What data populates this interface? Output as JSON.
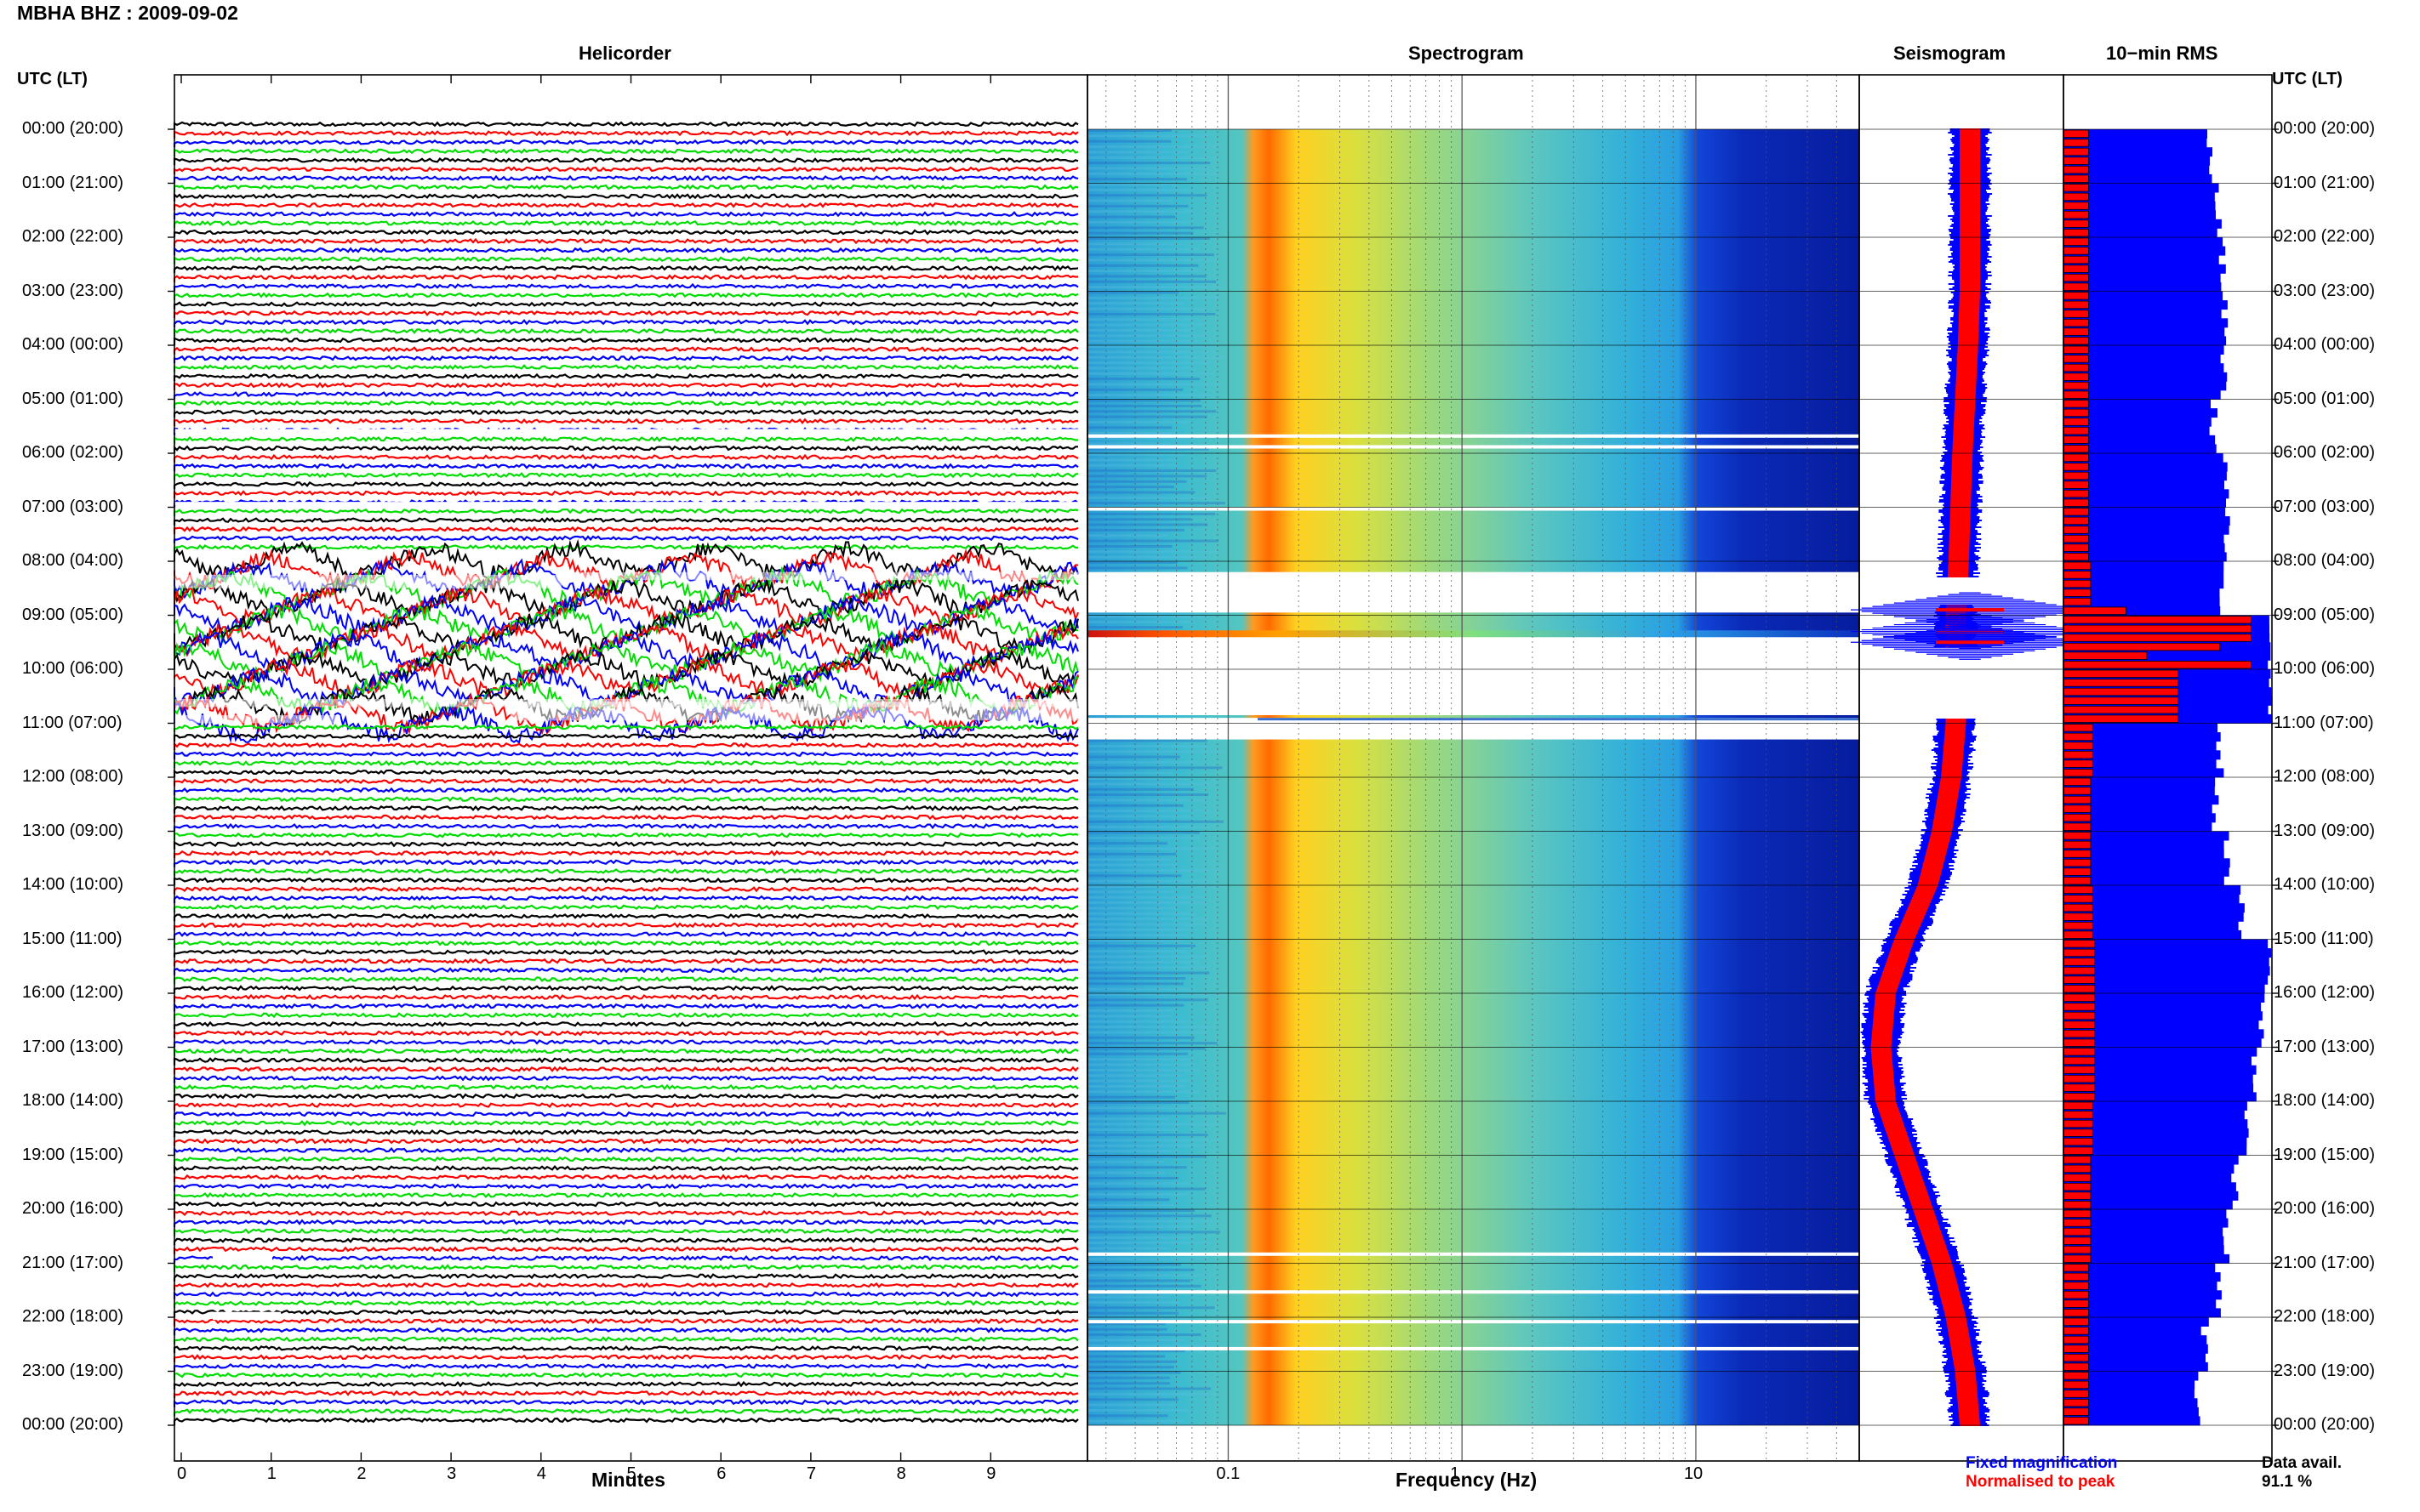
{
  "page": {
    "station_title": "MBHA BHZ : 2009-09-02",
    "utc_header_left": "UTC (LT)",
    "utc_header_right": "UTC (LT)"
  },
  "panels": {
    "helicorder": {
      "title": "Helicorder",
      "xlabel": "Minutes"
    },
    "spectrogram": {
      "title": "Spectrogram",
      "xlabel": "Frequency (Hz)"
    },
    "seismogram": {
      "title": "Seismogram"
    },
    "rms": {
      "title": "10−min RMS"
    }
  },
  "time_labels": [
    "00:00 (20:00)",
    "01:00 (21:00)",
    "02:00 (22:00)",
    "03:00 (23:00)",
    "04:00 (00:00)",
    "05:00 (01:00)",
    "06:00 (02:00)",
    "07:00 (03:00)",
    "08:00 (04:00)",
    "09:00 (05:00)",
    "10:00 (06:00)",
    "11:00 (07:00)",
    "12:00 (08:00)",
    "13:00 (09:00)",
    "14:00 (10:00)",
    "15:00 (11:00)",
    "16:00 (12:00)",
    "17:00 (13:00)",
    "18:00 (14:00)",
    "19:00 (15:00)",
    "20:00 (16:00)",
    "21:00 (17:00)",
    "22:00 (18:00)",
    "23:00 (19:00)",
    "00:00 (20:00)"
  ],
  "legend": {
    "fixed": "Fixed magnification",
    "normalised": "Normalised to peak",
    "data_avail_label": "Data avail.",
    "data_avail_value": "91.1 %"
  },
  "colors": {
    "trace_cycle": [
      "#000000",
      "#ff0000",
      "#0000ff",
      "#00dd00"
    ],
    "fixed": "#0000ff",
    "normalised": "#ff0000"
  },
  "chart_data": {
    "type": "heatmap",
    "helicorder": {
      "x_ticks": [
        "0",
        "1",
        "2",
        "3",
        "4",
        "5",
        "6",
        "7",
        "8",
        "9"
      ],
      "xlim": [
        0,
        10
      ],
      "lines_per_hour": 6,
      "hours": 24,
      "disturbed_hours": [
        8,
        9,
        10
      ]
    },
    "spectrogram": {
      "x_scale": "log",
      "xlim": [
        0.025,
        50
      ],
      "x_ticks": [
        "0.1",
        "1",
        "10"
      ],
      "tick_values": [
        0.1,
        1,
        10
      ],
      "gaps_hours": [
        [
          8.2,
          8.95
        ],
        [
          9.3,
          10.85
        ],
        [
          10.9,
          11.3
        ]
      ]
    },
    "seismogram": {
      "offset_by_hour": [
        0,
        0,
        0,
        0,
        0.02,
        0.05,
        0.08,
        0.1,
        0.12,
        0.15,
        0.15,
        0.15,
        0.2,
        0.3,
        0.45,
        0.7,
        0.9,
        0.95,
        0.9,
        0.7,
        0.5,
        0.3,
        0.15,
        0.05,
        0
      ],
      "gap_hours": [
        [
          8.3,
          8.8
        ],
        [
          9.6,
          10.9
        ]
      ]
    },
    "rms": {
      "blue_by_hour": [
        0.7,
        0.74,
        0.76,
        0.77,
        0.77,
        0.72,
        0.78,
        0.78,
        0.75,
        1.0,
        1.0,
        0.75,
        0.73,
        0.78,
        0.85,
        0.98,
        0.95,
        0.92,
        0.88,
        0.82,
        0.78,
        0.74,
        0.68,
        0.64,
        0.6
      ],
      "red_by_hour": [
        0.12,
        0.12,
        0.12,
        0.12,
        0.12,
        0.12,
        0.12,
        0.12,
        0.13,
        0.9,
        0.55,
        0.14,
        0.13,
        0.13,
        0.14,
        0.15,
        0.15,
        0.15,
        0.14,
        0.13,
        0.13,
        0.12,
        0.12,
        0.12,
        0.12
      ],
      "red_peaks": [
        {
          "hour": 8.9,
          "value": 0.3
        },
        {
          "hour": 9.3,
          "value": 0.9
        },
        {
          "hour": 9.5,
          "value": 0.75
        },
        {
          "hour": 9.7,
          "value": 0.4
        }
      ]
    }
  }
}
